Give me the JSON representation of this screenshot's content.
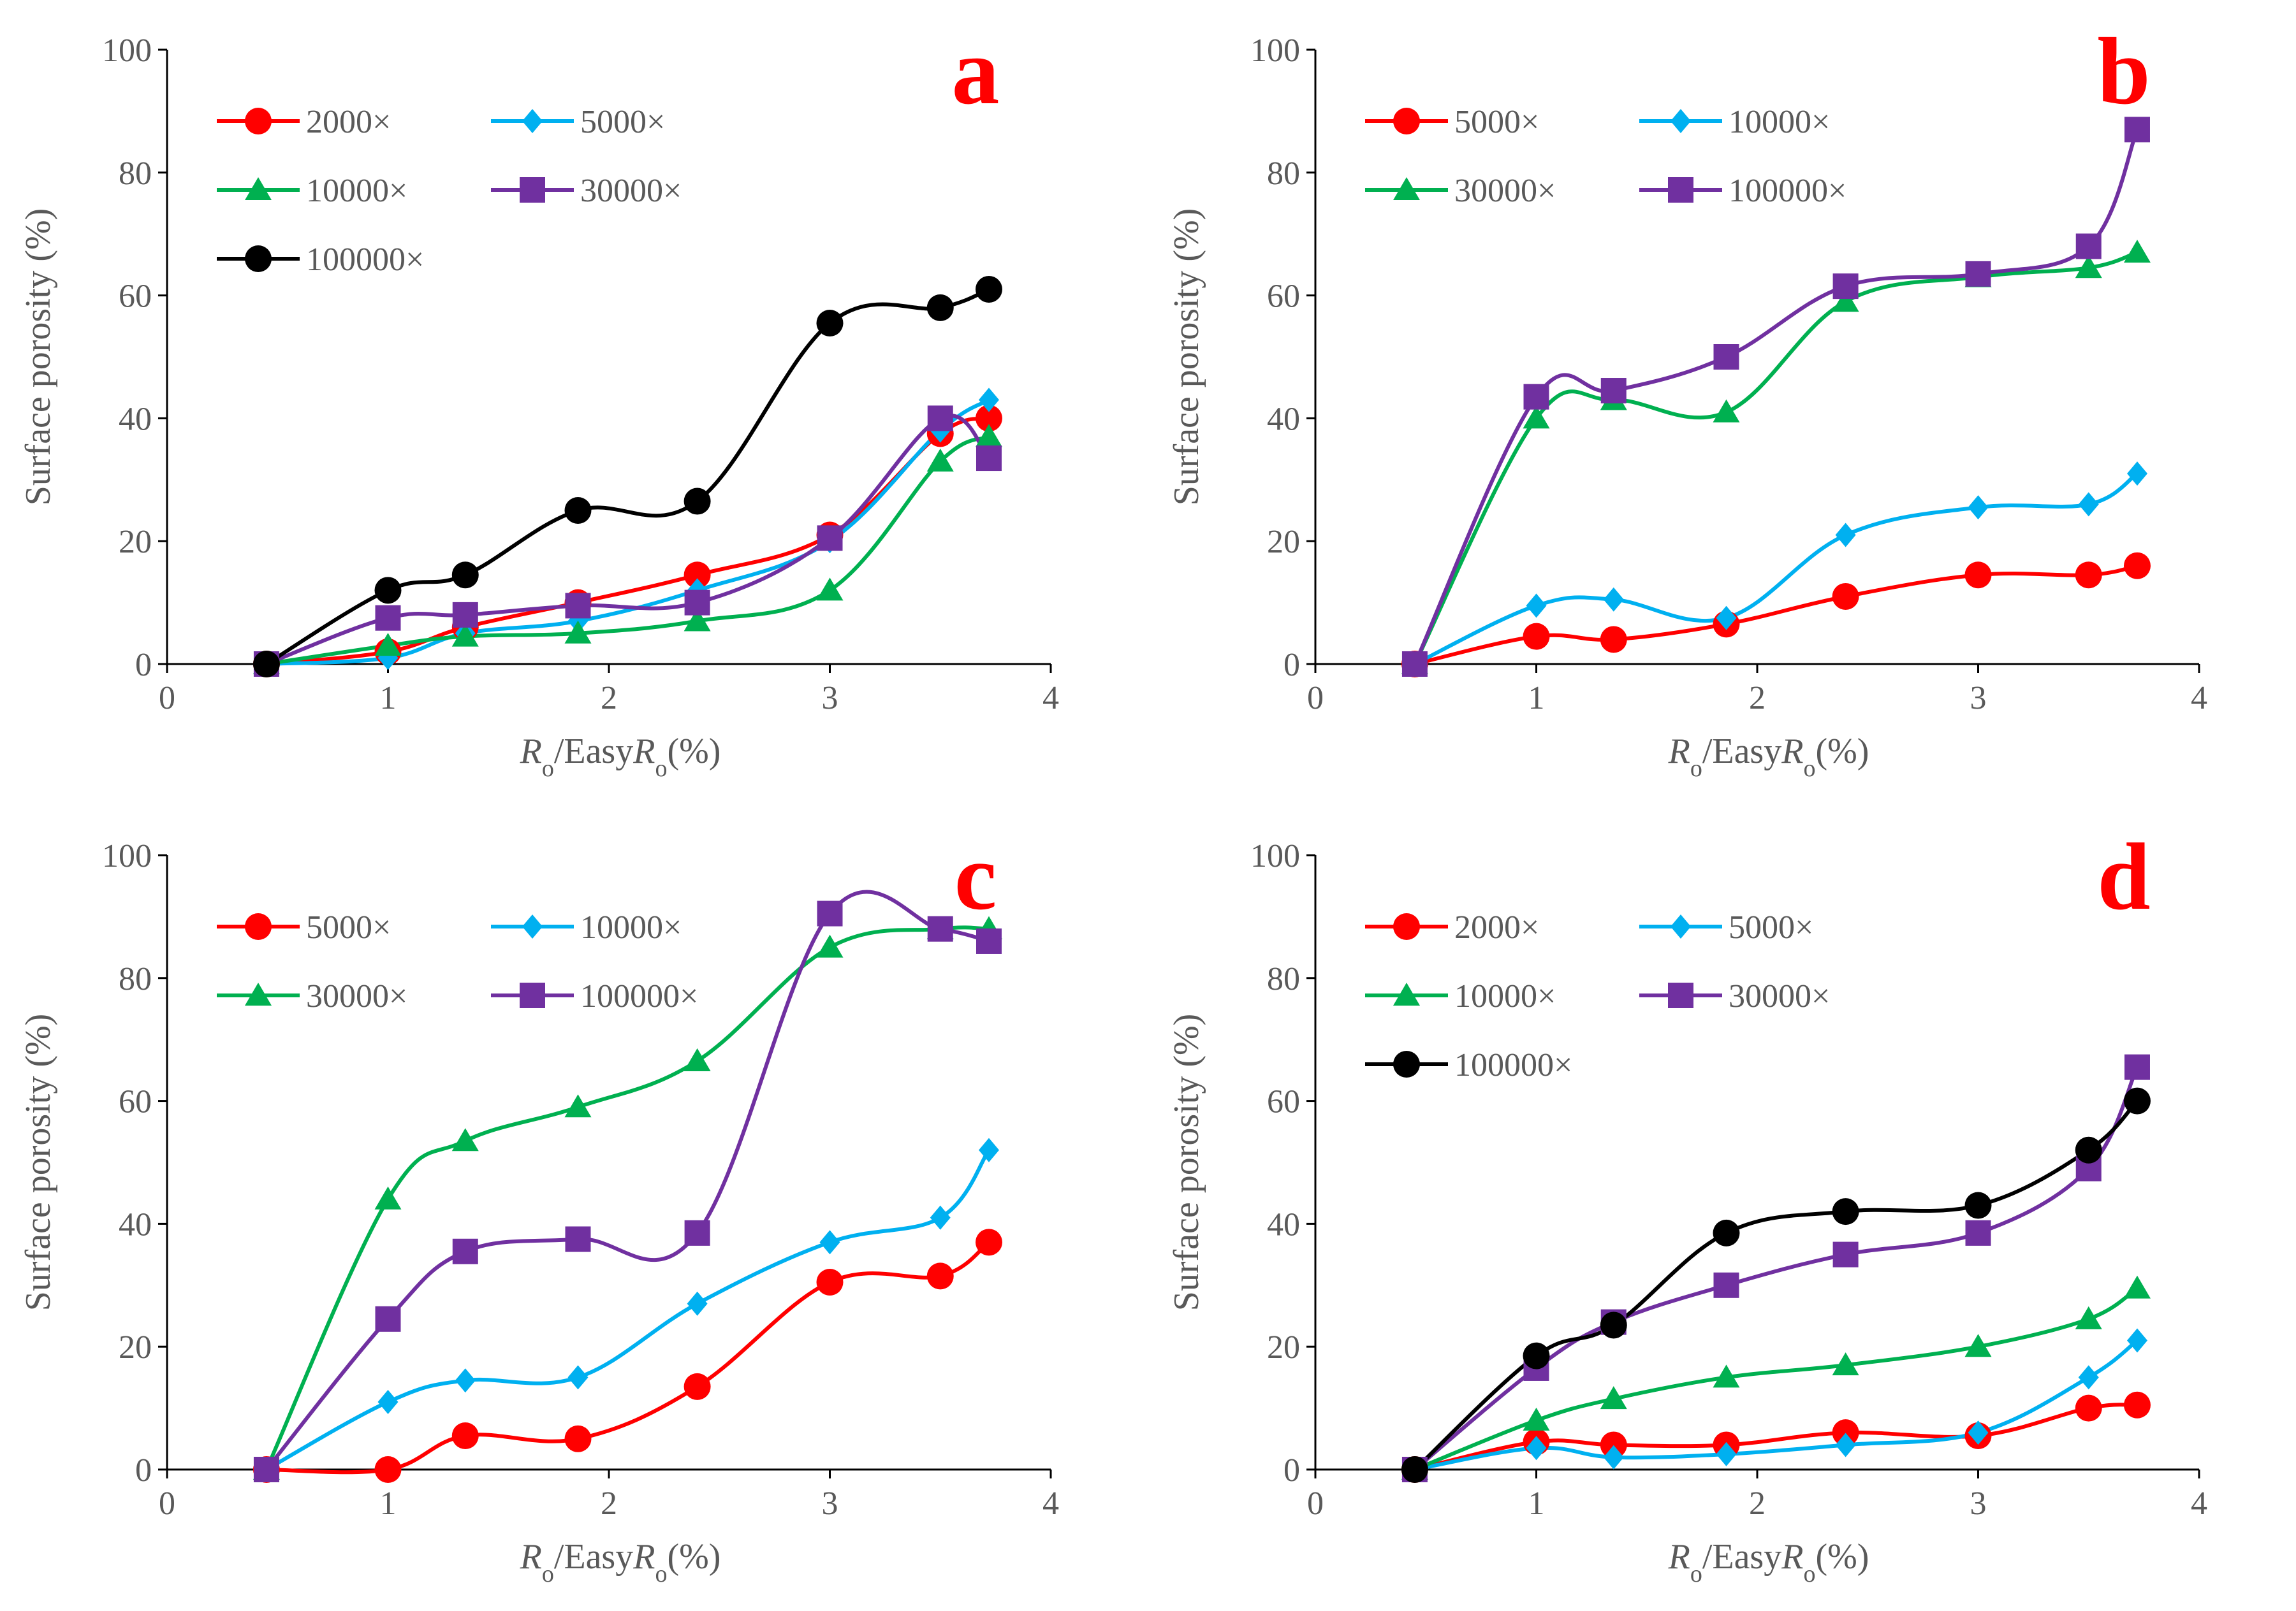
{
  "chart_data": [
    {
      "type": "line",
      "panel_label": "a",
      "ylabel": "Surface porosity (%)",
      "xlabel": {
        "parts": [
          {
            "t": "R",
            "i": true
          },
          {
            "t": "o",
            "sub": true
          },
          {
            "t": "/Easy"
          },
          {
            "t": "R",
            "i": true
          },
          {
            "t": "o",
            "sub": true
          },
          {
            "t": "(%)"
          }
        ]
      },
      "xlim": [
        0,
        4
      ],
      "ylim": [
        0,
        100
      ],
      "xticks": [
        "0",
        "1",
        "2",
        "3",
        "4"
      ],
      "yticks": [
        "0",
        "20",
        "40",
        "60",
        "80",
        "100"
      ],
      "x": [
        0.45,
        1.0,
        1.35,
        1.86,
        2.4,
        3.0,
        3.5,
        3.72
      ],
      "legend_cols": 2,
      "series": [
        {
          "name": "2000×",
          "color": "#ff0000",
          "marker": "circle",
          "values": [
            0,
            2,
            6,
            10,
            14.5,
            21,
            37.5,
            40
          ]
        },
        {
          "name": "5000×",
          "color": "#00b0f0",
          "marker": "diamond",
          "values": [
            0,
            1,
            5,
            7,
            12,
            20,
            38,
            43
          ]
        },
        {
          "name": "10000×",
          "color": "#00b050",
          "marker": "triangle",
          "values": [
            0,
            3,
            4.5,
            5,
            7,
            12,
            33,
            37
          ]
        },
        {
          "name": "30000×",
          "color": "#7030a0",
          "marker": "square",
          "values": [
            0,
            7.5,
            8,
            9.5,
            10,
            20.5,
            40,
            33.5
          ]
        },
        {
          "name": "100000×",
          "color": "#000000",
          "marker": "circle",
          "values": [
            0,
            12,
            14.5,
            25,
            26.5,
            55.5,
            58,
            61
          ]
        }
      ]
    },
    {
      "type": "line",
      "panel_label": "b",
      "ylabel": "Surface porosity (%)",
      "xlabel": {
        "parts": [
          {
            "t": "R",
            "i": true
          },
          {
            "t": "o",
            "sub": true
          },
          {
            "t": "/Easy"
          },
          {
            "t": "R",
            "i": true
          },
          {
            "t": "o",
            "sub": true
          },
          {
            "t": "(%)"
          }
        ]
      },
      "xlim": [
        0,
        4
      ],
      "ylim": [
        0,
        100
      ],
      "xticks": [
        "0",
        "1",
        "2",
        "3",
        "4"
      ],
      "yticks": [
        "0",
        "20",
        "40",
        "60",
        "80",
        "100"
      ],
      "x": [
        0.45,
        1.0,
        1.35,
        1.86,
        2.4,
        3.0,
        3.5,
        3.72
      ],
      "legend_cols": 2,
      "series": [
        {
          "name": "5000×",
          "color": "#ff0000",
          "marker": "circle",
          "values": [
            0,
            4.5,
            4,
            6.5,
            11,
            14.5,
            14.5,
            16
          ]
        },
        {
          "name": "10000×",
          "color": "#00b0f0",
          "marker": "diamond",
          "values": [
            0,
            9.5,
            10.5,
            7.5,
            21,
            25.5,
            26,
            31
          ]
        },
        {
          "name": "30000×",
          "color": "#00b050",
          "marker": "triangle",
          "values": [
            0,
            40,
            43,
            41,
            59,
            63,
            64.5,
            67
          ]
        },
        {
          "name": "100000×",
          "color": "#7030a0",
          "marker": "square",
          "values": [
            0,
            43.5,
            44.5,
            50,
            61.5,
            63.5,
            68,
            87
          ]
        }
      ]
    },
    {
      "type": "line",
      "panel_label": "c",
      "ylabel": "Surface porosity (%)",
      "xlabel": {
        "parts": [
          {
            "t": "R",
            "i": true
          },
          {
            "t": "o",
            "sub": true
          },
          {
            "t": "/Easy"
          },
          {
            "t": "R",
            "i": true
          },
          {
            "t": "o",
            "sub": true
          },
          {
            "t": "(%)"
          }
        ]
      },
      "xlim": [
        0,
        4
      ],
      "ylim": [
        0,
        100
      ],
      "xticks": [
        "0",
        "1",
        "2",
        "3",
        "4"
      ],
      "yticks": [
        "0",
        "20",
        "40",
        "60",
        "80",
        "100"
      ],
      "x": [
        0.45,
        1.0,
        1.35,
        1.86,
        2.4,
        3.0,
        3.5,
        3.72
      ],
      "legend_cols": 2,
      "series": [
        {
          "name": "5000×",
          "color": "#ff0000",
          "marker": "circle",
          "values": [
            0,
            0,
            5.5,
            5,
            13.5,
            30.5,
            31.5,
            37
          ]
        },
        {
          "name": "10000×",
          "color": "#00b0f0",
          "marker": "diamond",
          "values": [
            0,
            11,
            14.5,
            15,
            27,
            37,
            41,
            52
          ]
        },
        {
          "name": "30000×",
          "color": "#00b050",
          "marker": "triangle",
          "values": [
            0,
            44,
            53.5,
            59,
            66.5,
            85,
            88,
            88
          ]
        },
        {
          "name": "100000×",
          "color": "#7030a0",
          "marker": "square",
          "values": [
            0,
            24.5,
            35.5,
            37.5,
            38.5,
            90.5,
            88,
            86
          ]
        }
      ]
    },
    {
      "type": "line",
      "panel_label": "d",
      "ylabel": "Surface porosity (%)",
      "xlabel": {
        "parts": [
          {
            "t": "R",
            "i": true
          },
          {
            "t": "o",
            "sub": true
          },
          {
            "t": "/Easy"
          },
          {
            "t": "R",
            "i": true
          },
          {
            "t": "o",
            "sub": true
          },
          {
            "t": "(%)"
          }
        ]
      },
      "xlim": [
        0,
        4
      ],
      "ylim": [
        0,
        100
      ],
      "xticks": [
        "0",
        "1",
        "2",
        "3",
        "4"
      ],
      "yticks": [
        "0",
        "20",
        "40",
        "60",
        "80",
        "100"
      ],
      "x": [
        0.45,
        1.0,
        1.35,
        1.86,
        2.4,
        3.0,
        3.5,
        3.72
      ],
      "legend_cols": 2,
      "series": [
        {
          "name": "2000×",
          "color": "#ff0000",
          "marker": "circle",
          "values": [
            0,
            4.5,
            4,
            4,
            6,
            5.5,
            10,
            10.5
          ]
        },
        {
          "name": "5000×",
          "color": "#00b0f0",
          "marker": "diamond",
          "values": [
            0,
            3.5,
            2,
            2.5,
            4,
            6,
            15,
            21
          ]
        },
        {
          "name": "10000×",
          "color": "#00b050",
          "marker": "triangle",
          "values": [
            0,
            8,
            11.5,
            15,
            17,
            20,
            24.5,
            29.5
          ]
        },
        {
          "name": "30000×",
          "color": "#7030a0",
          "marker": "square",
          "values": [
            0,
            16.5,
            24,
            30,
            35,
            38.5,
            49,
            65.5
          ]
        },
        {
          "name": "100000×",
          "color": "#000000",
          "marker": "circle",
          "values": [
            0,
            18.5,
            23.5,
            38.5,
            42,
            43,
            52,
            60
          ]
        }
      ]
    }
  ]
}
